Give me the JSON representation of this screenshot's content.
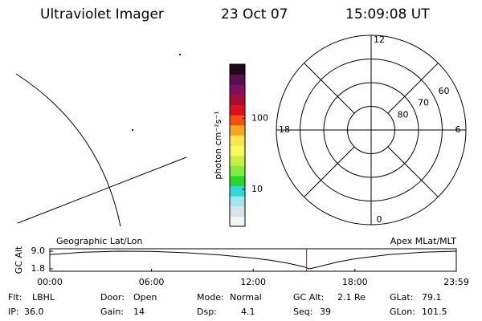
{
  "header": {
    "instrument": "Ultraviolet Imager",
    "date": "23 Oct 07",
    "time": "15:09:08 UT"
  },
  "image_panel": {
    "label": "Geographic Lat/Lon"
  },
  "colorbar": {
    "label": "photon cm⁻²s⁻¹",
    "scale": "log",
    "ylim": [
      3,
      580
    ],
    "yticks": [
      10,
      100
    ],
    "colors": [
      "#f4f4f4",
      "#d8e4e8",
      "#9ee6ee",
      "#30d8d8",
      "#28d828",
      "#80ee40",
      "#c8f040",
      "#f8f860",
      "#f8e850",
      "#f8a820",
      "#f85010",
      "#e01020",
      "#a81030",
      "#801060",
      "#581050",
      "#200818"
    ]
  },
  "polar": {
    "label": "Apex MLat/MLT",
    "rlim": [
      90,
      50
    ],
    "rticks": [
      80,
      70,
      60
    ],
    "mlt_ticks": [
      0,
      6,
      12,
      18
    ]
  },
  "altitude": {
    "ylabel": "GC Alt",
    "ylim": [
      0.8,
      10.0
    ],
    "yticks": [
      {
        "value": 9,
        "label": "9.0"
      },
      1.8
    ],
    "xlim": [
      0,
      23.983
    ],
    "xticks": [
      {
        "value": 0,
        "label": "00:00"
      },
      {
        "value": 6,
        "label": "06:00"
      },
      {
        "value": 12,
        "label": "12:00"
      },
      {
        "value": 18,
        "label": "18:00"
      },
      {
        "value": 23.983,
        "label": "23:59"
      }
    ],
    "x": [
      0,
      2,
      4,
      6,
      8,
      10,
      12,
      13,
      14,
      15,
      15.3,
      16,
      17,
      18,
      20,
      22,
      23.983
    ],
    "values": [
      7.6,
      8.6,
      9.0,
      8.9,
      8.4,
      7.5,
      6.2,
      5.3,
      4.2,
      2.6,
      1.8,
      2.9,
      4.6,
      5.9,
      7.6,
      8.6,
      9.0
    ],
    "color": "#000000",
    "marker": 15.15,
    "marker_color": "#e00000"
  },
  "info": [
    [
      [
        "Flt:",
        "LBHL"
      ],
      [
        "Door:",
        "Open"
      ],
      [
        "Mode:",
        "Normal"
      ],
      [
        "GC Alt:",
        "2.1 Re"
      ],
      [
        "GLat:",
        "79.1"
      ]
    ],
    [
      [
        "IP:",
        "36.0"
      ],
      [
        "Gain:",
        "14"
      ],
      [
        "Dsp:",
        "4.1"
      ],
      [
        "Seq:",
        "39"
      ],
      [
        "GLon:",
        "101.5"
      ]
    ]
  ]
}
